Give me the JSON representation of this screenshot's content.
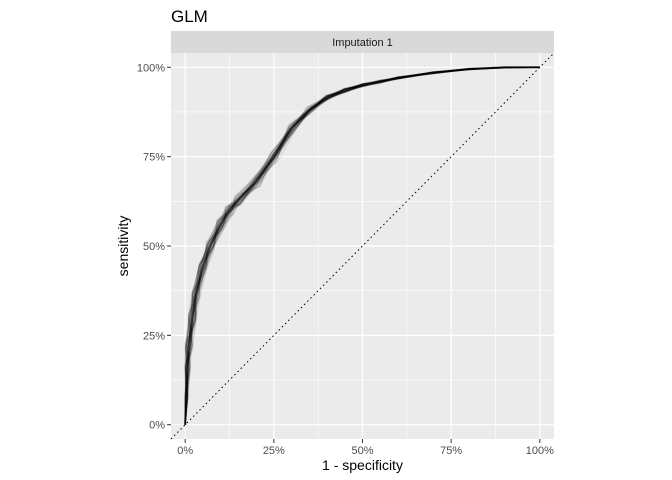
{
  "chart_data": {
    "type": "line",
    "title": "GLM",
    "facet_label": "Imputation 1",
    "xlabel": "1 - specificity",
    "ylabel": "sensitivity",
    "xlim": [
      -0.04,
      1.04
    ],
    "ylim": [
      -0.04,
      1.04
    ],
    "x_ticks": [
      0,
      0.25,
      0.5,
      0.75,
      1
    ],
    "x_tick_labels": [
      "0%",
      "25%",
      "50%",
      "75%",
      "100%"
    ],
    "y_ticks": [
      0,
      0.25,
      0.5,
      0.75,
      1
    ],
    "y_tick_labels": [
      "0%",
      "25%",
      "50%",
      "75%",
      "100%"
    ],
    "grid": true,
    "reference_line": {
      "x": [
        0,
        1
      ],
      "y": [
        0,
        1
      ],
      "style": "dotted"
    },
    "series_description": "many overlapping semi-transparent ROC curves",
    "roc_curve": {
      "x": [
        0,
        0.003,
        0.006,
        0.01,
        0.02,
        0.03,
        0.05,
        0.07,
        0.1,
        0.125,
        0.15,
        0.2,
        0.25,
        0.3,
        0.35,
        0.4,
        0.45,
        0.5,
        0.55,
        0.6,
        0.7,
        0.8,
        0.9,
        1.0
      ],
      "y": [
        0,
        0.08,
        0.16,
        0.22,
        0.3,
        0.36,
        0.44,
        0.5,
        0.56,
        0.6,
        0.63,
        0.68,
        0.75,
        0.83,
        0.88,
        0.915,
        0.935,
        0.95,
        0.96,
        0.97,
        0.985,
        0.995,
        1.0,
        1.0
      ]
    },
    "colors": {
      "panel_bg": "#ebebeb",
      "strip_bg": "#d9d9d9",
      "grid": "#ffffff",
      "curve": "#000000"
    }
  }
}
